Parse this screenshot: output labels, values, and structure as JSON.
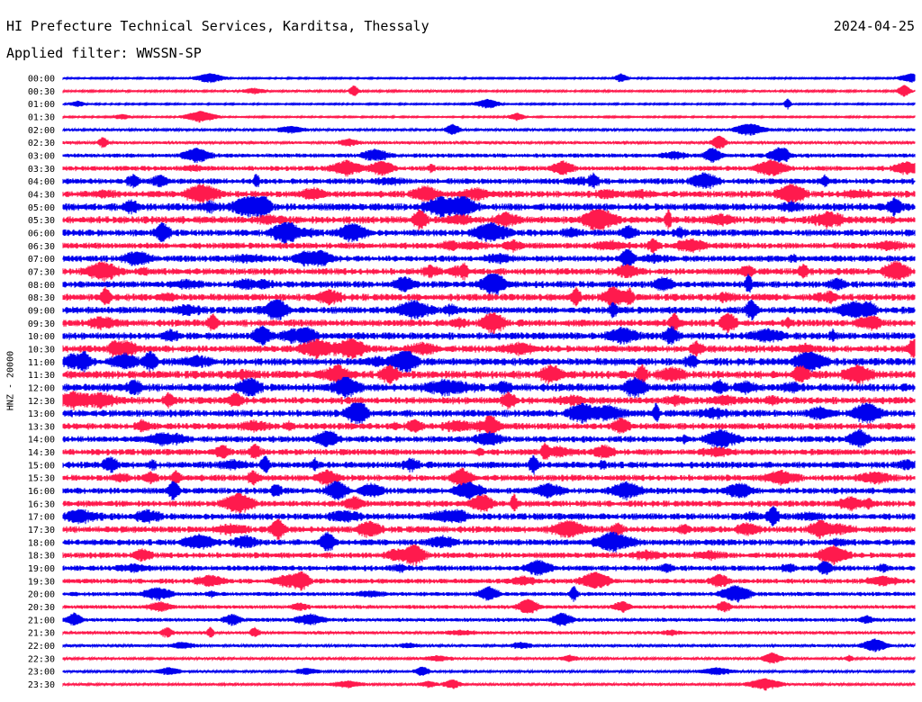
{
  "header": {
    "title": "HI Prefecture Technical Services, Karditsa, Thessaly",
    "date": "2024-04-25",
    "filter": "Applied filter: WWSSN-SP"
  },
  "colors": {
    "a": "#0000ee",
    "b": "#ff1a4d"
  },
  "chart_data": {
    "type": "line",
    "title": "HI Prefecture Technical Services, Karditsa, Thessaly",
    "subtitle": "Applied filter: WWSSN-SP",
    "ylabel": "HNZ - 20000",
    "xlabel": "",
    "grid": false,
    "series": [
      {
        "label": "00:00",
        "activity": 0.05
      },
      {
        "label": "00:30",
        "activity": 0.1
      },
      {
        "label": "01:00",
        "activity": 0.05
      },
      {
        "label": "01:30",
        "activity": 0.05
      },
      {
        "label": "02:00",
        "activity": 0.15
      },
      {
        "label": "02:30",
        "activity": 0.2
      },
      {
        "label": "03:00",
        "activity": 0.35
      },
      {
        "label": "03:30",
        "activity": 0.45
      },
      {
        "label": "04:00",
        "activity": 0.55
      },
      {
        "label": "04:30",
        "activity": 0.65
      },
      {
        "label": "05:00",
        "activity": 0.75
      },
      {
        "label": "05:30",
        "activity": 0.75
      },
      {
        "label": "06:00",
        "activity": 0.65
      },
      {
        "label": "06:30",
        "activity": 0.6
      },
      {
        "label": "07:00",
        "activity": 0.6
      },
      {
        "label": "07:30",
        "activity": 0.65
      },
      {
        "label": "08:00",
        "activity": 0.65
      },
      {
        "label": "08:30",
        "activity": 0.7
      },
      {
        "label": "09:00",
        "activity": 0.7
      },
      {
        "label": "09:30",
        "activity": 0.7
      },
      {
        "label": "10:00",
        "activity": 0.7
      },
      {
        "label": "10:30",
        "activity": 0.7
      },
      {
        "label": "11:00",
        "activity": 0.75
      },
      {
        "label": "11:30",
        "activity": 0.8
      },
      {
        "label": "12:00",
        "activity": 0.8
      },
      {
        "label": "12:30",
        "activity": 0.7
      },
      {
        "label": "13:00",
        "activity": 0.7
      },
      {
        "label": "13:30",
        "activity": 0.65
      },
      {
        "label": "14:00",
        "activity": 0.6
      },
      {
        "label": "14:30",
        "activity": 0.6
      },
      {
        "label": "15:00",
        "activity": 0.65
      },
      {
        "label": "15:30",
        "activity": 0.6
      },
      {
        "label": "16:00",
        "activity": 0.6
      },
      {
        "label": "16:30",
        "activity": 0.6
      },
      {
        "label": "17:00",
        "activity": 0.65
      },
      {
        "label": "17:30",
        "activity": 0.65
      },
      {
        "label": "18:00",
        "activity": 0.6
      },
      {
        "label": "18:30",
        "activity": 0.55
      },
      {
        "label": "19:00",
        "activity": 0.5
      },
      {
        "label": "19:30",
        "activity": 0.45
      },
      {
        "label": "20:00",
        "activity": 0.35
      },
      {
        "label": "20:30",
        "activity": 0.3
      },
      {
        "label": "21:00",
        "activity": 0.3
      },
      {
        "label": "21:30",
        "activity": 0.25
      },
      {
        "label": "22:00",
        "activity": 0.2
      },
      {
        "label": "22:30",
        "activity": 0.15
      },
      {
        "label": "23:00",
        "activity": 0.15
      },
      {
        "label": "23:30",
        "activity": 0.15
      }
    ]
  }
}
